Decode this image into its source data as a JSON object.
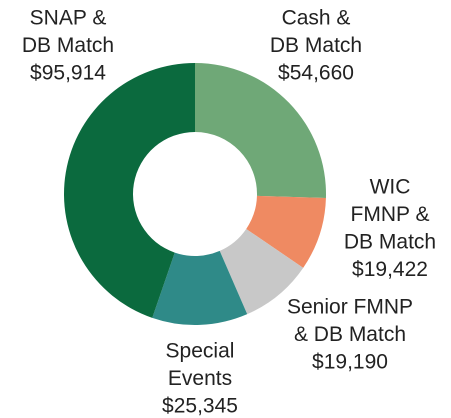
{
  "chart_data": {
    "type": "donut",
    "categories": [
      [
        "Cash &",
        "DB Match"
      ],
      [
        "WIC",
        "FMNP &",
        "DB Match"
      ],
      [
        "Senior FMNP",
        "& DB Match"
      ],
      [
        "Special",
        "Events"
      ],
      [
        "SNAP &",
        "DB Match"
      ]
    ],
    "values": [
      54660,
      19422,
      19190,
      25345,
      95914
    ],
    "value_labels": [
      "$54,660",
      "$19,422",
      "$19,190",
      "$25,345",
      "$95,914"
    ],
    "colors": [
      "#6fa877",
      "#ef8a62",
      "#c8c8c8",
      "#2f8a88",
      "#0b6a3e"
    ]
  }
}
